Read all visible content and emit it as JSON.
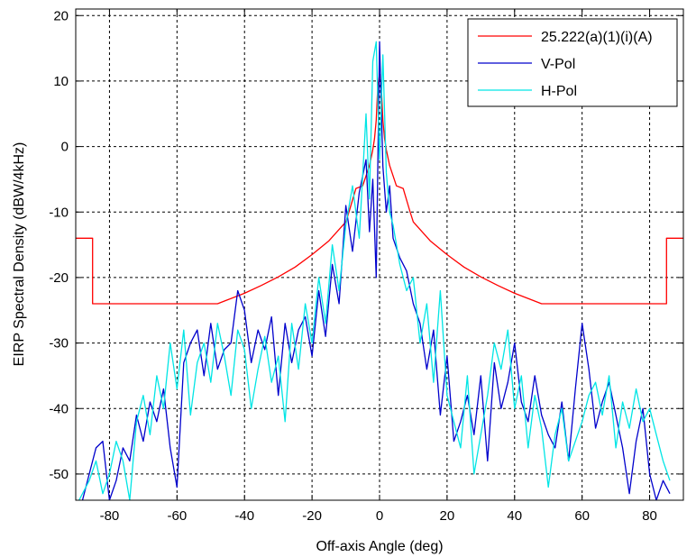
{
  "chart_data": {
    "type": "line",
    "title": "",
    "xlabel": "Off-axis Angle (deg)",
    "ylabel": "EIRP Spectral Density (dBW/4kHz)",
    "xlim": [
      -90,
      90
    ],
    "ylim": [
      -54,
      21
    ],
    "xticks": [
      -80,
      -60,
      -40,
      -20,
      0,
      20,
      40,
      60,
      80
    ],
    "yticks": [
      -50,
      -40,
      -30,
      -20,
      -10,
      0,
      10,
      20
    ],
    "grid": true,
    "legend_position": "top-right",
    "series": [
      {
        "name": "25.222(a)(1)(i)(A)",
        "color": "#ff0000",
        "x": [
          -90,
          -85,
          -85,
          -48,
          -45,
          -40,
          -35,
          -30,
          -25,
          -20,
          -15,
          -10,
          -9,
          -7,
          -5,
          -3,
          -2,
          -1.5,
          -1,
          -0.5,
          0,
          0.5,
          1,
          1.5,
          2,
          3,
          5,
          7,
          9,
          10,
          15,
          20,
          25,
          30,
          35,
          40,
          45,
          48,
          85,
          85,
          90
        ],
        "y": [
          -14,
          -14,
          -24,
          -24,
          -23.4,
          -22.4,
          -21.2,
          -19.9,
          -18.4,
          -16.5,
          -14.4,
          -11.5,
          -9.9,
          -6.4,
          -6,
          -2.9,
          -0.5,
          1.2,
          4,
          9.3,
          11,
          9.3,
          4,
          1.2,
          -0.5,
          -2.9,
          -6,
          -6.4,
          -9.9,
          -11.5,
          -14.4,
          -16.5,
          -18.4,
          -19.9,
          -21.2,
          -22.4,
          -23.4,
          -24,
          -24,
          -14,
          -14
        ]
      },
      {
        "name": "V-Pol",
        "color": "#0000cc",
        "x": [
          -88,
          -86,
          -84,
          -82,
          -80,
          -78,
          -76,
          -74,
          -72,
          -70,
          -68,
          -66,
          -64,
          -62,
          -60,
          -58,
          -56,
          -54,
          -52,
          -50,
          -48,
          -46,
          -44,
          -42,
          -40,
          -38,
          -36,
          -34,
          -32,
          -30,
          -28,
          -26,
          -24,
          -22,
          -20,
          -18,
          -16,
          -14,
          -12,
          -10,
          -8,
          -6,
          -4,
          -3,
          -2,
          -1,
          0,
          1,
          2,
          3,
          4,
          6,
          8,
          10,
          12,
          14,
          16,
          18,
          20,
          22,
          24,
          26,
          28,
          30,
          32,
          34,
          36,
          38,
          40,
          42,
          44,
          46,
          48,
          50,
          52,
          54,
          56,
          58,
          60,
          62,
          64,
          66,
          68,
          70,
          72,
          74,
          76,
          78,
          80,
          82,
          84,
          86
        ],
        "y": [
          -54,
          -50,
          -46,
          -45,
          -54,
          -51,
          -46,
          -48,
          -41,
          -45,
          -39,
          -42,
          -37,
          -46,
          -52,
          -33,
          -30,
          -28,
          -35,
          -27,
          -34,
          -31,
          -30,
          -22,
          -25,
          -33,
          -28,
          -31,
          -26,
          -38,
          -27,
          -33,
          -28,
          -26,
          -32,
          -22,
          -29,
          -18,
          -24,
          -9,
          -16,
          -7,
          -2,
          -13,
          -5,
          -20,
          16,
          -3,
          -10,
          -6,
          -14,
          -17,
          -19,
          -24,
          -27,
          -34,
          -28,
          -41,
          -32,
          -45,
          -42,
          -38,
          -44,
          -35,
          -48,
          -33,
          -40,
          -36,
          -30,
          -39,
          -42,
          -35,
          -41,
          -44,
          -46,
          -39,
          -48,
          -37,
          -27,
          -34,
          -43,
          -39,
          -36,
          -41,
          -46,
          -53,
          -45,
          -40,
          -50,
          -54,
          -51,
          -53
        ]
      },
      {
        "name": "H-Pol",
        "color": "#00e5e5",
        "x": [
          -89,
          -86,
          -84,
          -82,
          -80,
          -78,
          -76,
          -74,
          -72,
          -70,
          -68,
          -66,
          -64,
          -62,
          -60,
          -58,
          -56,
          -54,
          -52,
          -50,
          -48,
          -46,
          -44,
          -42,
          -40,
          -38,
          -36,
          -34,
          -32,
          -30,
          -28,
          -26,
          -24,
          -22,
          -20,
          -18,
          -16,
          -14,
          -12,
          -10,
          -8,
          -6,
          -4,
          -3,
          -2,
          -1,
          0,
          1,
          2,
          3,
          4,
          6,
          8,
          10,
          12,
          14,
          16,
          18,
          20,
          22,
          24,
          26,
          28,
          30,
          32,
          34,
          36,
          38,
          40,
          42,
          44,
          46,
          48,
          50,
          52,
          54,
          56,
          58,
          60,
          62,
          64,
          66,
          68,
          70,
          72,
          74,
          76,
          78,
          80,
          82,
          84,
          86
        ],
        "y": [
          -54,
          -51,
          -48,
          -53,
          -50,
          -45,
          -48,
          -54,
          -42,
          -38,
          -44,
          -35,
          -40,
          -30,
          -37,
          -28,
          -41,
          -33,
          -30,
          -36,
          -27,
          -32,
          -38,
          -28,
          -31,
          -40,
          -34,
          -29,
          -36,
          -32,
          -42,
          -27,
          -34,
          -24,
          -30,
          -20,
          -27,
          -15,
          -22,
          -12,
          -6,
          -14,
          5,
          -8,
          13,
          16,
          -2,
          14,
          -4,
          -10,
          -12,
          -18,
          -22,
          -20,
          -30,
          -24,
          -36,
          -22,
          -38,
          -42,
          -46,
          -35,
          -50,
          -44,
          -38,
          -30,
          -34,
          -28,
          -40,
          -35,
          -46,
          -38,
          -43,
          -52,
          -44,
          -40,
          -48,
          -45,
          -42,
          -38,
          -36,
          -41,
          -35,
          -46,
          -39,
          -43,
          -37,
          -42,
          -40,
          -44,
          -48,
          -51
        ]
      }
    ]
  }
}
